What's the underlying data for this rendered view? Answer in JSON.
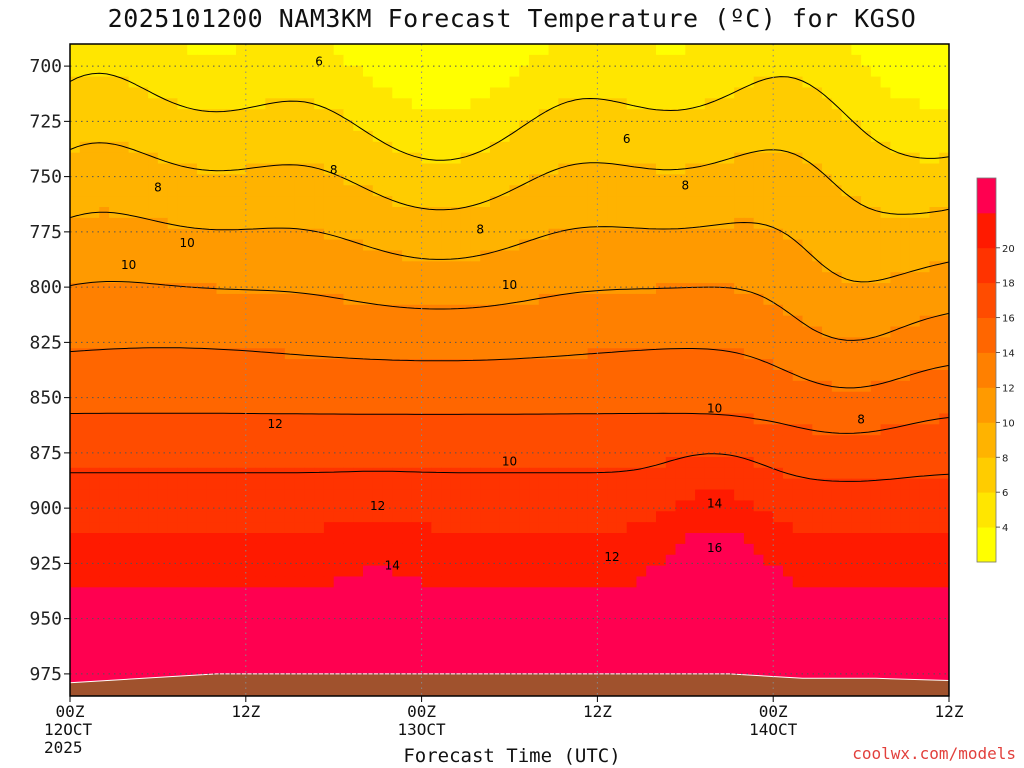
{
  "title": "2025101200 NAM3KM Forecast Temperature (ºC) for KGSO",
  "xaxis_title": "Forecast Time (UTC)",
  "credit": "coolwx.com/models",
  "colors": {
    "bands": [
      "#ffff00",
      "#ffe600",
      "#ffcc00",
      "#ffb300",
      "#ff9a00",
      "#ff8000",
      "#ff6600",
      "#ff4c00",
      "#ff3300",
      "#ff1a00",
      "#ff0050"
    ],
    "ground": "#a0522d",
    "grid": "#555555"
  },
  "chart_data": {
    "type": "heatmap",
    "variable": "Temperature (ºC)",
    "y_axis": {
      "label": "",
      "ticks": [
        "700",
        "725",
        "750",
        "775",
        "800",
        "825",
        "850",
        "875",
        "900",
        "925",
        "950",
        "975"
      ],
      "range": [
        690,
        985
      ]
    },
    "x_axis": {
      "ticks": [
        {
          "line1": "00Z",
          "line2": "12OCT",
          "line3": "2025"
        },
        {
          "line1": "12Z",
          "line2": "",
          "line3": ""
        },
        {
          "line1": "00Z",
          "line2": "13OCT",
          "line3": ""
        },
        {
          "line1": "12Z",
          "line2": "",
          "line3": ""
        },
        {
          "line1": "00Z",
          "line2": "14OCT",
          "line3": ""
        },
        {
          "line1": "12Z",
          "line2": "",
          "line3": ""
        }
      ],
      "hours": [
        0,
        12,
        24,
        36,
        48,
        60
      ]
    },
    "grid": true,
    "colorbar": {
      "ticks": [
        "4",
        "6",
        "8",
        "10",
        "12",
        "14",
        "16",
        "18",
        "20"
      ]
    },
    "contour_labels": [
      {
        "text": "6",
        "hour": 17,
        "p": 698
      },
      {
        "text": "6",
        "hour": 38,
        "p": 733
      },
      {
        "text": "8",
        "hour": 6,
        "p": 755
      },
      {
        "text": "8",
        "hour": 18,
        "p": 747
      },
      {
        "text": "8",
        "hour": 28,
        "p": 774
      },
      {
        "text": "8",
        "hour": 42,
        "p": 754
      },
      {
        "text": "8",
        "hour": 54,
        "p": 860
      },
      {
        "text": "10",
        "hour": 8,
        "p": 780
      },
      {
        "text": "10",
        "hour": 4,
        "p": 790
      },
      {
        "text": "10",
        "hour": 30,
        "p": 799
      },
      {
        "text": "10",
        "hour": 30,
        "p": 879
      },
      {
        "text": "10",
        "hour": 44,
        "p": 855
      },
      {
        "text": "12",
        "hour": 14,
        "p": 862
      },
      {
        "text": "12",
        "hour": 21,
        "p": 899
      },
      {
        "text": "12",
        "hour": 37,
        "p": 922
      },
      {
        "text": "14",
        "hour": 22,
        "p": 926
      },
      {
        "text": "14",
        "hour": 44,
        "p": 898
      },
      {
        "text": "16",
        "hour": 44,
        "p": 918
      }
    ],
    "profile_min_temp_by_level": [
      {
        "p": 700,
        "t": 5
      },
      {
        "p": 750,
        "t": 7
      },
      {
        "p": 800,
        "t": 9
      },
      {
        "p": 850,
        "t": 10
      },
      {
        "p": 900,
        "t": 12
      },
      {
        "p": 950,
        "t": 15
      },
      {
        "p": 975,
        "t": 17
      }
    ]
  }
}
